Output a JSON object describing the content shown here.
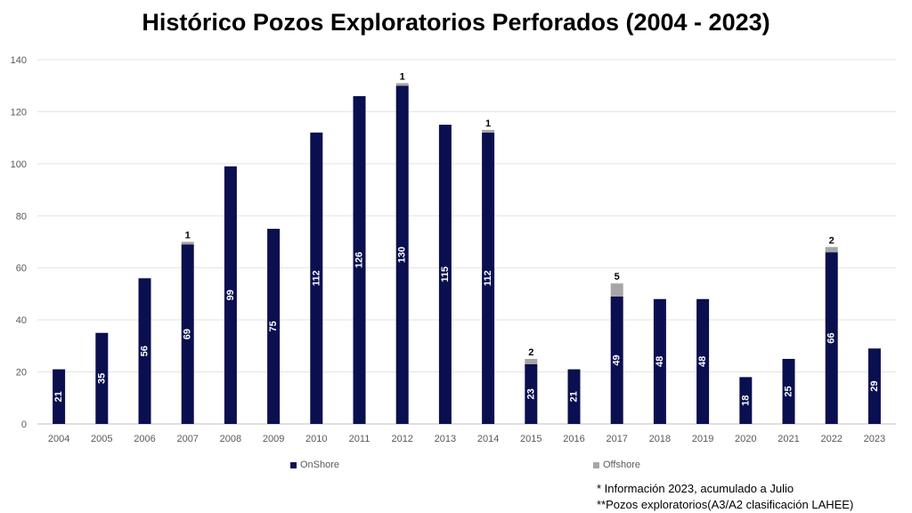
{
  "chart_data": {
    "type": "bar",
    "stacked": true,
    "title": "Histórico Pozos Exploratorios Perforados (2004 - 2023)",
    "categories": [
      "2004",
      "2005",
      "2006",
      "2007",
      "2008",
      "2009",
      "2010",
      "2011",
      "2012",
      "2013",
      "2014",
      "2015",
      "2016",
      "2017",
      "2018",
      "2019",
      "2020",
      "2021",
      "2022",
      "2023"
    ],
    "series": [
      {
        "name": "OnShore",
        "color": "#0a0f4f",
        "values": [
          21,
          35,
          56,
          69,
          99,
          75,
          112,
          126,
          130,
          115,
          112,
          23,
          21,
          49,
          48,
          48,
          18,
          25,
          66,
          29
        ],
        "data_labels": [
          "21",
          "35",
          "56",
          "69",
          "99",
          "75",
          "112",
          "126",
          "130",
          "115",
          "112",
          "23",
          "21",
          "49",
          "48",
          "48",
          "18",
          "25",
          "66",
          "29"
        ]
      },
      {
        "name": "Offshore",
        "color": "#a6a6a6",
        "values": [
          0,
          0,
          0,
          1,
          0,
          0,
          0,
          0,
          1,
          0,
          1,
          2,
          0,
          5,
          0,
          0,
          0,
          0,
          2,
          0
        ],
        "data_labels": [
          "",
          "",
          "",
          "1",
          "",
          "",
          "",
          "",
          "1",
          "",
          "1",
          "2",
          "",
          "5",
          "",
          "",
          "",
          "",
          "2",
          ""
        ]
      }
    ],
    "ylim": [
      0,
      140
    ],
    "yticks": [
      "0",
      "20",
      "40",
      "60",
      "80",
      "100",
      "120",
      "140"
    ],
    "grid": true,
    "legend_position": "bottom"
  },
  "notes": [
    "* Información 2023, acumulado a Julio",
    "**Pozos exploratorios(A3/A2 clasificación LAHEE)"
  ]
}
